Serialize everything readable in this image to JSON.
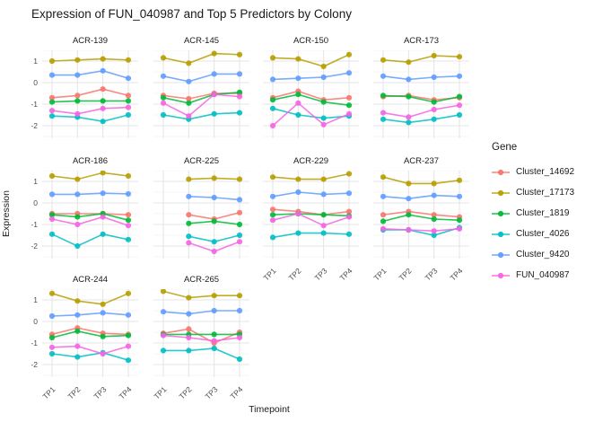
{
  "title": "Expression of FUN_040987 and Top 5 Predictors by Colony",
  "axes": {
    "x_label": "Timepoint",
    "y_label": "Expression",
    "x_ticks": [
      "TP1",
      "TP2",
      "TP3",
      "TP4"
    ],
    "y_ticks": [
      1,
      0,
      -1,
      -2
    ]
  },
  "legend": {
    "title": "Gene",
    "entries": [
      {
        "label": "Cluster_14692",
        "color": "#F8766D"
      },
      {
        "label": "Cluster_17173",
        "color": "#B79F00"
      },
      {
        "label": "Cluster_1819",
        "color": "#00BA38"
      },
      {
        "label": "Cluster_4026",
        "color": "#00BFC4"
      },
      {
        "label": "Cluster_9420",
        "color": "#619CFF"
      },
      {
        "label": "FUN_040987",
        "color": "#F564E3"
      }
    ]
  },
  "chart_data": {
    "type": "line",
    "x": [
      "TP1",
      "TP2",
      "TP3",
      "TP4"
    ],
    "ylim": [
      -2.55,
      1.5
    ],
    "grid": true,
    "legend_position": "right",
    "facets": [
      {
        "colony": "ACR-139",
        "series": {
          "Cluster_14692": [
            -0.7,
            -0.6,
            -0.3,
            -0.6
          ],
          "Cluster_17173": [
            1.0,
            1.05,
            1.1,
            1.05
          ],
          "Cluster_1819": [
            -0.9,
            -0.85,
            -0.85,
            -0.85
          ],
          "Cluster_4026": [
            -1.55,
            -1.6,
            -1.8,
            -1.5
          ],
          "Cluster_9420": [
            0.35,
            0.35,
            0.55,
            0.2
          ],
          "FUN_040987": [
            -1.3,
            -1.45,
            -1.2,
            -1.15
          ]
        }
      },
      {
        "colony": "ACR-145",
        "series": {
          "Cluster_14692": [
            -0.6,
            -0.75,
            -0.5,
            -0.5
          ],
          "Cluster_17173": [
            1.15,
            0.9,
            1.35,
            1.3
          ],
          "Cluster_1819": [
            -0.7,
            -0.95,
            -0.55,
            -0.45
          ],
          "Cluster_4026": [
            -1.5,
            -1.7,
            -1.45,
            -1.4
          ],
          "Cluster_9420": [
            0.3,
            0.05,
            0.4,
            0.4
          ],
          "FUN_040987": [
            -0.95,
            -1.55,
            -0.55,
            -0.65
          ]
        }
      },
      {
        "colony": "ACR-150",
        "series": {
          "Cluster_14692": [
            -0.7,
            -0.4,
            -0.8,
            -0.7
          ],
          "Cluster_17173": [
            1.15,
            1.1,
            0.75,
            1.3
          ],
          "Cluster_1819": [
            -0.8,
            -0.55,
            -0.9,
            -1.05
          ],
          "Cluster_4026": [
            -1.2,
            -1.5,
            -1.65,
            -1.55
          ],
          "Cluster_9420": [
            0.15,
            0.2,
            0.25,
            0.45
          ],
          "FUN_040987": [
            -2.0,
            -0.95,
            -1.95,
            -1.45
          ]
        }
      },
      {
        "colony": "ACR-173",
        "series": {
          "Cluster_14692": [
            -0.65,
            -0.6,
            -0.8,
            -0.7
          ],
          "Cluster_17173": [
            1.05,
            0.95,
            1.25,
            1.2
          ],
          "Cluster_1819": [
            -0.6,
            -0.65,
            -0.9,
            -0.65
          ],
          "Cluster_4026": [
            -1.7,
            -1.85,
            -1.7,
            -1.5
          ],
          "Cluster_9420": [
            0.3,
            0.15,
            0.25,
            0.3
          ],
          "FUN_040987": [
            -1.4,
            -1.6,
            -1.25,
            -1.05
          ]
        }
      },
      {
        "colony": "ACR-186",
        "series": {
          "Cluster_14692": [
            -0.5,
            -0.5,
            -0.5,
            -0.55
          ],
          "Cluster_17173": [
            1.25,
            1.1,
            1.4,
            1.25
          ],
          "Cluster_1819": [
            -0.55,
            -0.65,
            -0.5,
            -0.8
          ],
          "Cluster_4026": [
            -1.45,
            -2.0,
            -1.45,
            -1.7
          ],
          "Cluster_9420": [
            0.4,
            0.4,
            0.45,
            0.42
          ],
          "FUN_040987": [
            -0.75,
            -1.0,
            -0.65,
            -1.05
          ]
        }
      },
      {
        "colony": "ACR-225",
        "series": {
          "Cluster_14692": [
            null,
            -0.55,
            -0.75,
            -0.45
          ],
          "Cluster_17173": [
            null,
            1.1,
            1.15,
            1.1
          ],
          "Cluster_1819": [
            null,
            -0.95,
            -0.85,
            -1.0
          ],
          "Cluster_4026": [
            null,
            -1.55,
            -1.8,
            -1.5
          ],
          "Cluster_9420": [
            null,
            0.3,
            0.25,
            0.15
          ],
          "FUN_040987": [
            null,
            -1.85,
            -2.25,
            -1.8
          ]
        }
      },
      {
        "colony": "ACR-229",
        "series": {
          "Cluster_14692": [
            -0.3,
            -0.4,
            -0.55,
            -0.4
          ],
          "Cluster_17173": [
            1.2,
            1.1,
            1.1,
            1.35
          ],
          "Cluster_1819": [
            -0.55,
            -0.5,
            -0.55,
            -0.6
          ],
          "Cluster_4026": [
            -1.6,
            -1.4,
            -1.4,
            -1.45
          ],
          "Cluster_9420": [
            0.3,
            0.5,
            0.4,
            0.45
          ],
          "FUN_040987": [
            -0.8,
            -0.5,
            -1.05,
            -0.65
          ]
        }
      },
      {
        "colony": "ACR-237",
        "series": {
          "Cluster_14692": [
            -0.55,
            -0.4,
            -0.55,
            -0.65
          ],
          "Cluster_17173": [
            1.2,
            0.9,
            0.9,
            1.05
          ],
          "Cluster_1819": [
            -0.85,
            -0.55,
            -0.75,
            -0.8
          ],
          "Cluster_4026": [
            -1.25,
            -1.25,
            -1.5,
            -1.15
          ],
          "Cluster_9420": [
            0.3,
            0.2,
            0.35,
            0.3
          ],
          "FUN_040987": [
            -1.2,
            -1.25,
            -1.3,
            -1.2
          ]
        }
      },
      {
        "colony": "ACR-244",
        "series": {
          "Cluster_14692": [
            -0.6,
            -0.3,
            -0.55,
            -0.6
          ],
          "Cluster_17173": [
            1.3,
            0.95,
            0.8,
            1.3
          ],
          "Cluster_1819": [
            -0.75,
            -0.45,
            -0.7,
            -0.65
          ],
          "Cluster_4026": [
            -1.5,
            -1.65,
            -1.45,
            -1.8
          ],
          "Cluster_9420": [
            0.25,
            0.3,
            0.4,
            0.3
          ],
          "FUN_040987": [
            -1.2,
            -1.15,
            -1.5,
            -1.15
          ]
        }
      },
      {
        "colony": "ACR-265",
        "series": {
          "Cluster_14692": [
            -0.55,
            -0.35,
            -1.0,
            -0.5
          ],
          "Cluster_17173": [
            1.4,
            1.1,
            1.2,
            1.2
          ],
          "Cluster_1819": [
            -0.6,
            -0.6,
            -0.6,
            -0.6
          ],
          "Cluster_4026": [
            -1.35,
            -1.35,
            -1.25,
            -1.75
          ],
          "Cluster_9420": [
            0.45,
            0.35,
            0.5,
            0.5
          ],
          "FUN_040987": [
            -0.65,
            -0.75,
            -0.9,
            -0.75
          ]
        }
      }
    ]
  }
}
